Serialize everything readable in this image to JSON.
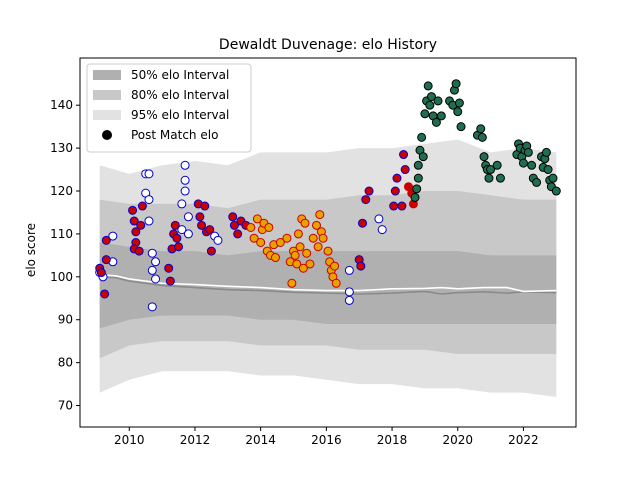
{
  "chart_data": {
    "type": "scatter",
    "title": "Dewaldt Duvenage: elo History",
    "xlabel": "",
    "ylabel": "elo score",
    "xlim": [
      2008.5,
      2023.6
    ],
    "ylim": [
      65,
      151
    ],
    "xticks": [
      2010,
      2012,
      2014,
      2016,
      2018,
      2020,
      2022
    ],
    "yticks": [
      70,
      80,
      90,
      100,
      110,
      120,
      130,
      140
    ],
    "legend": {
      "position": "top-left",
      "entries": [
        {
          "label": "50% elo Interval",
          "color": "#b0b0b0"
        },
        {
          "label": "80% elo Interval",
          "color": "#c8c8c8"
        },
        {
          "label": "95% elo Interval",
          "color": "#e2e2e2"
        },
        {
          "label": "Post Match elo",
          "color": "#000000"
        }
      ]
    },
    "bands": {
      "x": [
        2009.1,
        2010.0,
        2011.0,
        2012.0,
        2013.0,
        2014.0,
        2015.0,
        2016.0,
        2017.0,
        2018.0,
        2019.0,
        2020.0,
        2021.0,
        2022.0,
        2023.0
      ],
      "p95": [
        [
          73,
          126
        ],
        [
          76,
          124
        ],
        [
          78,
          126
        ],
        [
          78,
          127
        ],
        [
          78,
          126
        ],
        [
          77,
          129
        ],
        [
          77,
          129
        ],
        [
          76,
          129
        ],
        [
          75,
          130
        ],
        [
          75,
          130
        ],
        [
          74,
          131
        ],
        [
          74,
          132
        ],
        [
          73,
          129
        ],
        [
          73,
          130
        ],
        [
          72,
          129
        ]
      ],
      "p80": [
        [
          81,
          118
        ],
        [
          84,
          117
        ],
        [
          85,
          117
        ],
        [
          85,
          117
        ],
        [
          85,
          116
        ],
        [
          84,
          118
        ],
        [
          84,
          118
        ],
        [
          84,
          118
        ],
        [
          83,
          119
        ],
        [
          83,
          119
        ],
        [
          83,
          120
        ],
        [
          82,
          120
        ],
        [
          82,
          119
        ],
        [
          82,
          118
        ],
        [
          82,
          118
        ]
      ],
      "p50": [
        [
          88,
          108
        ],
        [
          90,
          107
        ],
        [
          91,
          106
        ],
        [
          91,
          106
        ],
        [
          91,
          105
        ],
        [
          90,
          106
        ],
        [
          90,
          106
        ],
        [
          89,
          106
        ],
        [
          89,
          106
        ],
        [
          89,
          106
        ],
        [
          89,
          106
        ],
        [
          89,
          106
        ],
        [
          89,
          105
        ],
        [
          89,
          105
        ],
        [
          89,
          105
        ]
      ]
    },
    "series": [
      {
        "color": "#0000cc",
        "fill": "#ffffff",
        "points": [
          [
            2009.1,
            101
          ],
          [
            2009.2,
            100
          ],
          [
            2009.5,
            109.5
          ],
          [
            2009.5,
            103.5
          ],
          [
            2010.5,
            124
          ],
          [
            2010.6,
            124
          ],
          [
            2010.5,
            119.5
          ],
          [
            2010.6,
            118
          ],
          [
            2010.6,
            113
          ],
          [
            2010.7,
            105.5
          ],
          [
            2010.7,
            101.5
          ],
          [
            2010.7,
            93
          ],
          [
            2010.8,
            103.5
          ],
          [
            2010.8,
            99.5
          ],
          [
            2011.7,
            126
          ],
          [
            2011.7,
            122.5
          ],
          [
            2011.7,
            120
          ],
          [
            2011.6,
            117
          ],
          [
            2011.8,
            114
          ],
          [
            2011.6,
            111
          ],
          [
            2011.8,
            110
          ],
          [
            2012.6,
            109.5
          ],
          [
            2012.7,
            108.5
          ],
          [
            2016.7,
            101.5
          ],
          [
            2016.7,
            96.5
          ],
          [
            2016.7,
            94.5
          ],
          [
            2017.6,
            113.5
          ],
          [
            2017.7,
            111
          ]
        ]
      },
      {
        "color": "#0000cc",
        "fill": "#cc0000",
        "points": [
          [
            2009.1,
            102
          ],
          [
            2009.15,
            101
          ],
          [
            2009.25,
            96
          ],
          [
            2009.3,
            104
          ],
          [
            2009.3,
            108.5
          ],
          [
            2010.1,
            115.5
          ],
          [
            2010.15,
            113
          ],
          [
            2010.2,
            110.5
          ],
          [
            2010.2,
            108
          ],
          [
            2010.15,
            106.5
          ],
          [
            2010.3,
            106
          ],
          [
            2010.35,
            112
          ],
          [
            2010.4,
            116.5
          ],
          [
            2011.2,
            102
          ],
          [
            2011.25,
            99
          ],
          [
            2011.3,
            106.5
          ],
          [
            2011.35,
            110
          ],
          [
            2011.4,
            112
          ],
          [
            2011.45,
            109
          ],
          [
            2011.5,
            107
          ],
          [
            2012.1,
            117
          ],
          [
            2012.15,
            114
          ],
          [
            2012.2,
            112
          ],
          [
            2012.3,
            116.5
          ],
          [
            2012.35,
            110.5
          ],
          [
            2012.45,
            111
          ],
          [
            2012.5,
            106
          ],
          [
            2013.15,
            114
          ],
          [
            2013.2,
            112
          ],
          [
            2013.3,
            110
          ],
          [
            2013.4,
            113
          ],
          [
            2013.55,
            112
          ],
          [
            2017.0,
            104
          ],
          [
            2017.05,
            102.5
          ],
          [
            2017.1,
            112.5
          ],
          [
            2017.2,
            118
          ],
          [
            2017.3,
            120
          ],
          [
            2018.05,
            116.5
          ],
          [
            2018.1,
            120
          ],
          [
            2018.15,
            123
          ],
          [
            2018.3,
            116.5
          ],
          [
            2018.35,
            128.5
          ],
          [
            2018.4,
            125
          ]
        ]
      },
      {
        "color": "#cc0000",
        "fill": "#e8a200",
        "points": [
          [
            2013.7,
            111.5
          ],
          [
            2013.8,
            109
          ],
          [
            2013.9,
            113.5
          ],
          [
            2014.0,
            108
          ],
          [
            2014.05,
            111
          ],
          [
            2014.1,
            112.5
          ],
          [
            2014.2,
            106
          ],
          [
            2014.25,
            111.5
          ],
          [
            2014.3,
            105
          ],
          [
            2014.4,
            107.5
          ],
          [
            2014.45,
            104.5
          ],
          [
            2014.6,
            108
          ],
          [
            2014.8,
            109
          ],
          [
            2014.9,
            103.5
          ],
          [
            2014.95,
            98.5
          ],
          [
            2015.0,
            106
          ],
          [
            2015.05,
            105
          ],
          [
            2015.1,
            103
          ],
          [
            2015.15,
            110
          ],
          [
            2015.2,
            107
          ],
          [
            2015.25,
            113.5
          ],
          [
            2015.3,
            102
          ],
          [
            2015.35,
            112.5
          ],
          [
            2015.4,
            105.5
          ],
          [
            2015.5,
            103
          ],
          [
            2015.6,
            109
          ],
          [
            2015.7,
            112
          ],
          [
            2015.75,
            107
          ],
          [
            2015.8,
            114.5
          ],
          [
            2015.85,
            110.5
          ],
          [
            2015.9,
            109
          ],
          [
            2016.05,
            106
          ],
          [
            2016.1,
            103.5
          ],
          [
            2016.15,
            101.5
          ],
          [
            2016.2,
            100
          ],
          [
            2016.25,
            102.5
          ],
          [
            2016.3,
            98.5
          ]
        ]
      },
      {
        "color": "#cc0000",
        "fill": "#cc0000",
        "points": [
          [
            2018.5,
            121
          ],
          [
            2018.6,
            119.5
          ],
          [
            2018.65,
            117
          ]
        ]
      },
      {
        "color": "#000000",
        "fill": "#1f6e50",
        "points": [
          [
            2018.7,
            118.5
          ],
          [
            2018.75,
            120.5
          ],
          [
            2018.8,
            123
          ],
          [
            2018.8,
            126
          ],
          [
            2018.85,
            129.5
          ],
          [
            2018.9,
            132.5
          ],
          [
            2018.95,
            128
          ],
          [
            2019.0,
            138
          ],
          [
            2019.05,
            141
          ],
          [
            2019.1,
            144.5
          ],
          [
            2019.15,
            140
          ],
          [
            2019.2,
            142
          ],
          [
            2019.25,
            137.5
          ],
          [
            2019.35,
            136
          ],
          [
            2019.4,
            141
          ],
          [
            2019.5,
            137.5
          ],
          [
            2019.75,
            141
          ],
          [
            2019.85,
            140
          ],
          [
            2019.9,
            143.5
          ],
          [
            2019.95,
            145
          ],
          [
            2020.0,
            138.5
          ],
          [
            2020.05,
            140.5
          ],
          [
            2020.1,
            135
          ],
          [
            2020.6,
            133
          ],
          [
            2020.7,
            134.5
          ],
          [
            2020.75,
            132.5
          ],
          [
            2020.8,
            128
          ],
          [
            2020.85,
            126
          ],
          [
            2020.9,
            125
          ],
          [
            2020.95,
            123
          ],
          [
            2021.0,
            125
          ],
          [
            2021.2,
            126
          ],
          [
            2021.3,
            123
          ],
          [
            2021.8,
            128.5
          ],
          [
            2021.85,
            131
          ],
          [
            2021.9,
            130
          ],
          [
            2021.95,
            128
          ],
          [
            2022.0,
            126.5
          ],
          [
            2022.05,
            129.5
          ],
          [
            2022.1,
            130.5
          ],
          [
            2022.15,
            129
          ],
          [
            2022.25,
            126
          ],
          [
            2022.3,
            123
          ],
          [
            2022.4,
            122
          ],
          [
            2022.55,
            128
          ],
          [
            2022.6,
            125.5
          ],
          [
            2022.65,
            127.5
          ],
          [
            2022.7,
            129
          ],
          [
            2022.75,
            125
          ],
          [
            2022.8,
            122.5
          ],
          [
            2022.85,
            121
          ],
          [
            2022.9,
            123
          ],
          [
            2023.0,
            120
          ]
        ]
      }
    ],
    "lines": {
      "median_white": [
        [
          2009.1,
          100.5
        ],
        [
          2009.6,
          100.2
        ],
        [
          2010.0,
          99.5
        ],
        [
          2011.0,
          98.5
        ],
        [
          2012.0,
          98.2
        ],
        [
          2013.0,
          97.8
        ],
        [
          2014.0,
          97.5
        ],
        [
          2015.0,
          97.0
        ],
        [
          2016.0,
          96.8
        ],
        [
          2017.0,
          96.8
        ],
        [
          2018.0,
          97.2
        ],
        [
          2019.0,
          97.3
        ],
        [
          2019.5,
          97.5
        ],
        [
          2020.0,
          97.2
        ],
        [
          2020.8,
          97.5
        ],
        [
          2021.5,
          97.5
        ],
        [
          2022.0,
          96.6
        ],
        [
          2023.0,
          96.8
        ]
      ],
      "mean_dark": [
        [
          2009.1,
          100.0
        ],
        [
          2009.6,
          99.8
        ],
        [
          2010.0,
          99.0
        ],
        [
          2011.0,
          98.0
        ],
        [
          2012.0,
          97.5
        ],
        [
          2013.0,
          97.0
        ],
        [
          2014.0,
          96.8
        ],
        [
          2015.0,
          96.4
        ],
        [
          2016.0,
          96.2
        ],
        [
          2017.0,
          96.0
        ],
        [
          2018.0,
          96.2
        ],
        [
          2019.0,
          96.6
        ],
        [
          2019.5,
          96.0
        ],
        [
          2020.0,
          96.3
        ],
        [
          2020.8,
          96.5
        ],
        [
          2021.5,
          96.2
        ],
        [
          2022.0,
          96.5
        ],
        [
          2023.0,
          96.3
        ]
      ]
    }
  }
}
